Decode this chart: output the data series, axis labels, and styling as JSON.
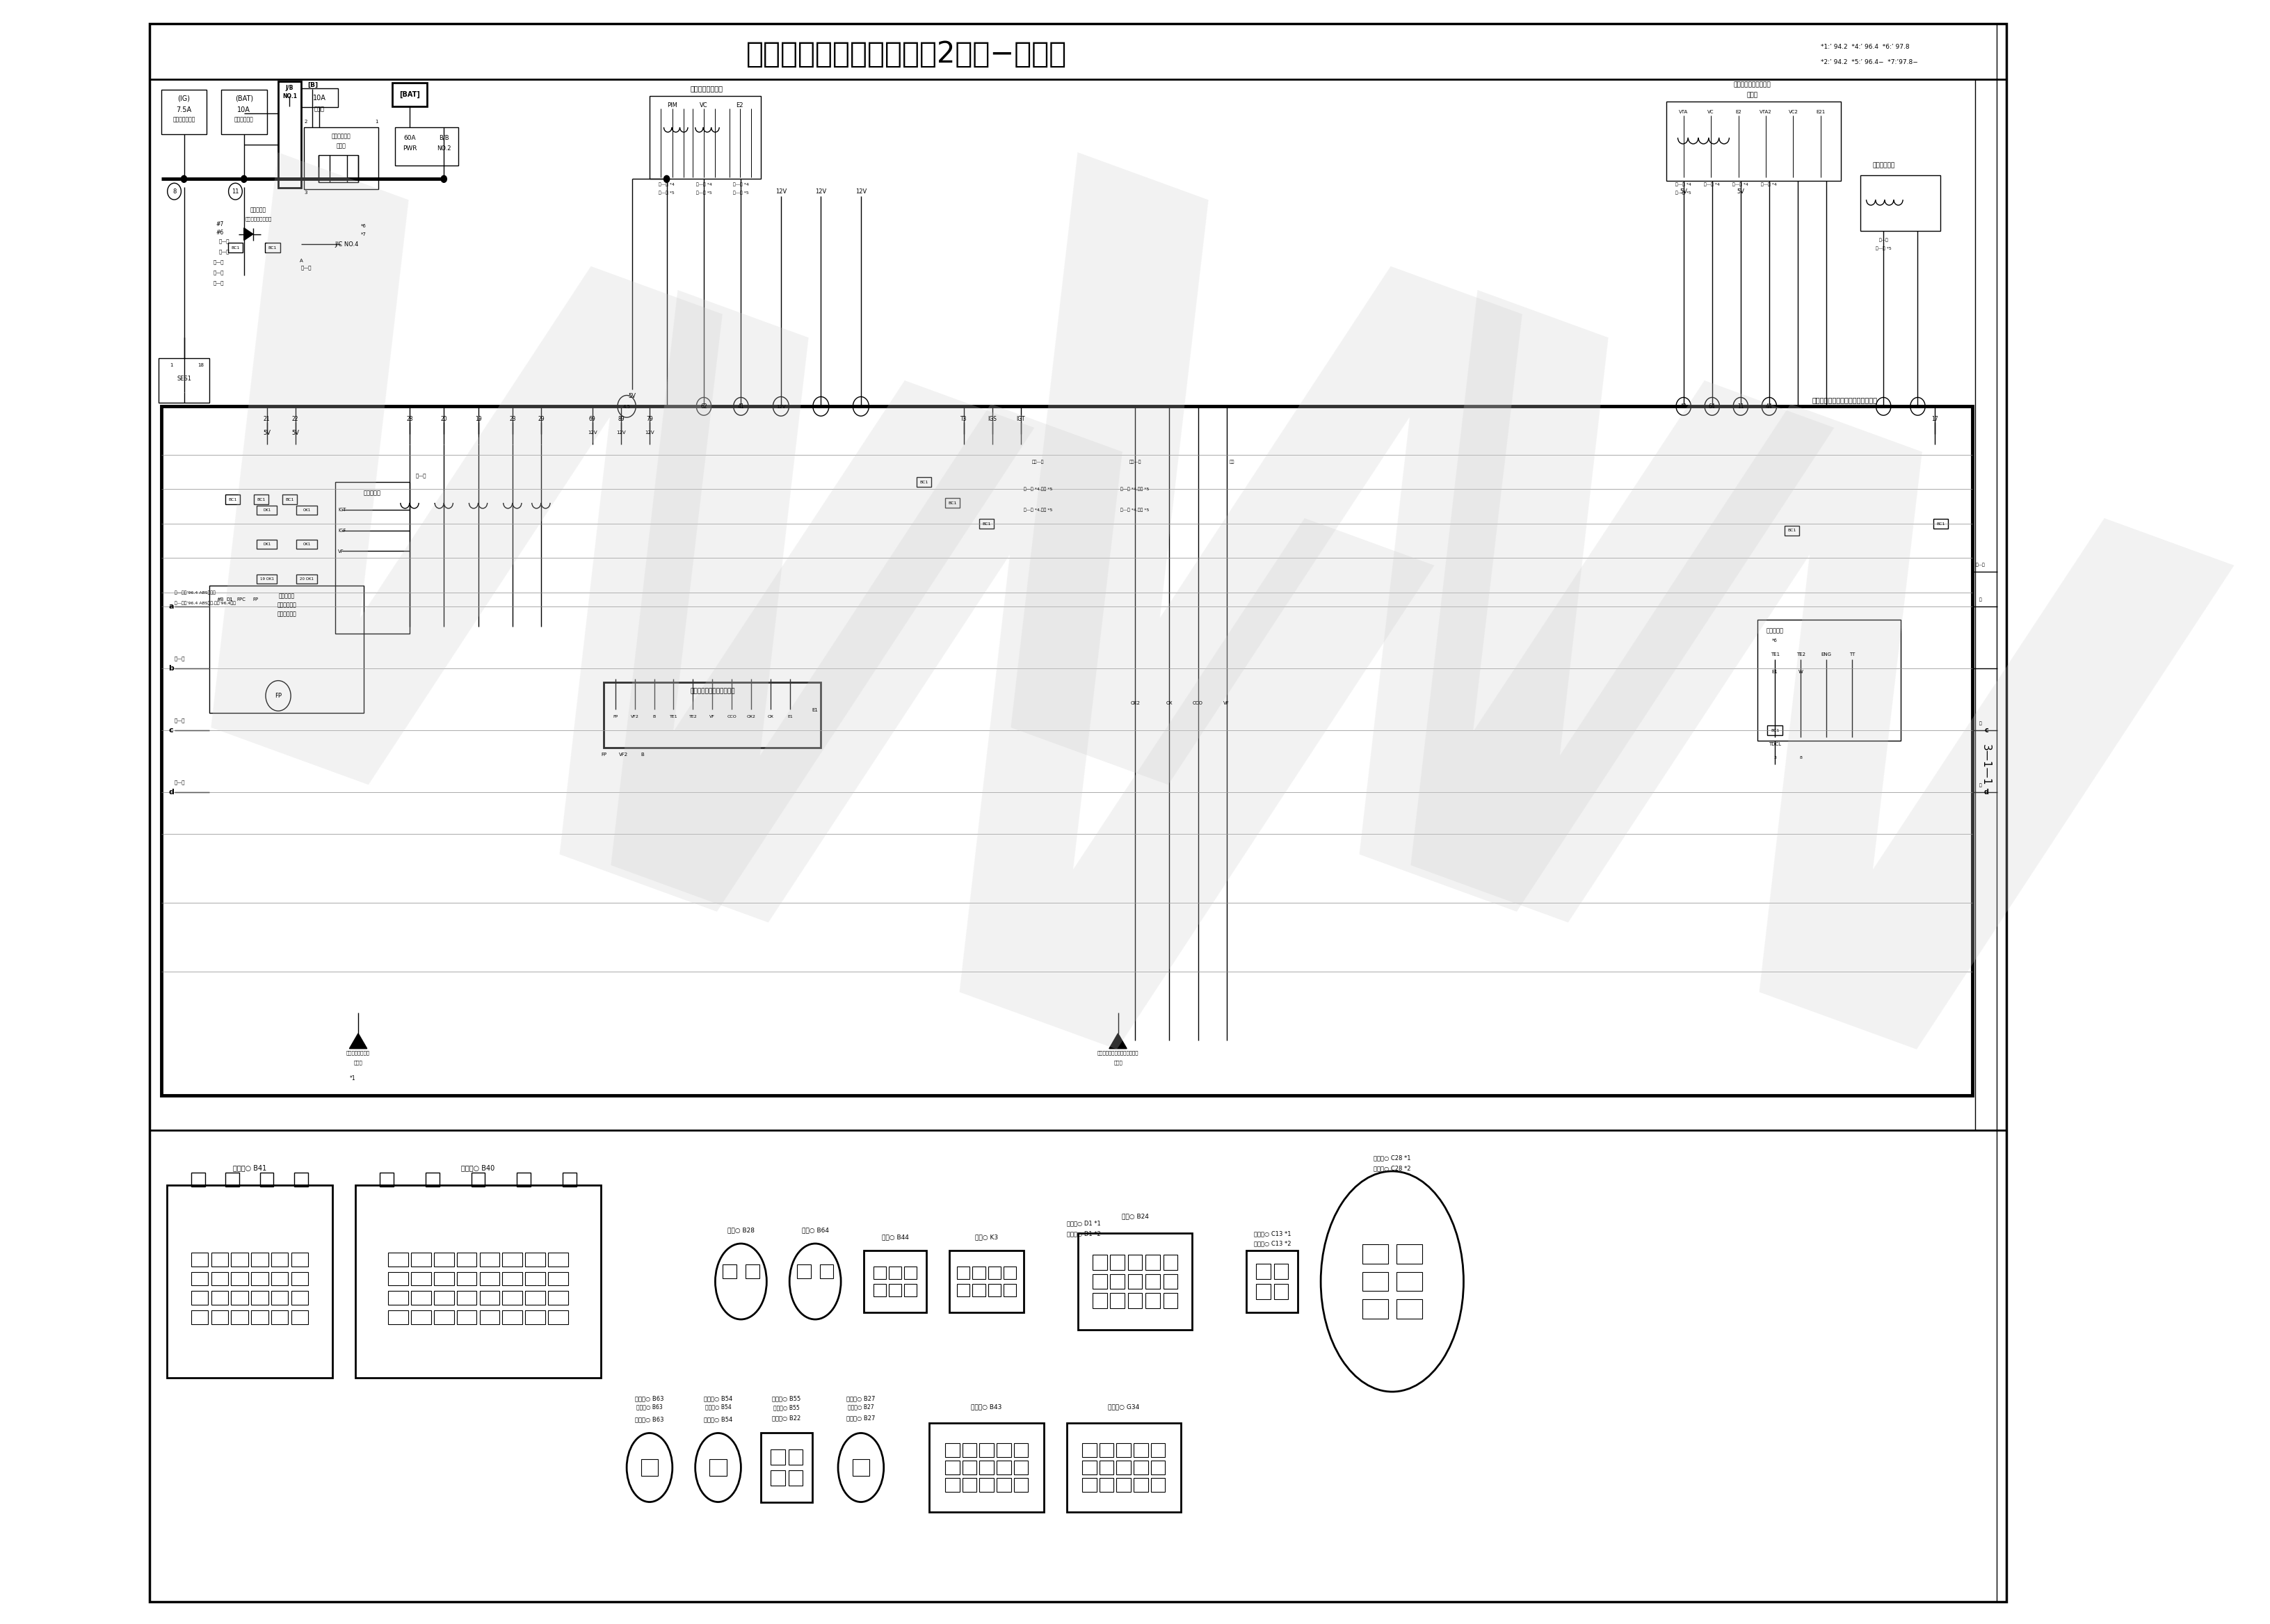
{
  "title": "エンジンコントロール（2ＪＺ−ＧＥ）",
  "subtitle_right1": "*1:’ 94.2  *4:’ 96.4  *6:’ 97.8",
  "subtitle_right2": "*2:’ 94.2  *5:’ 96.4−  *7:’97.8−",
  "page_label": "3—1—1",
  "bg_color": "#ffffff",
  "line_color": "#000000",
  "watermark_color": "#cccccc",
  "title_fontsize": 30,
  "body_fontsize": 7
}
